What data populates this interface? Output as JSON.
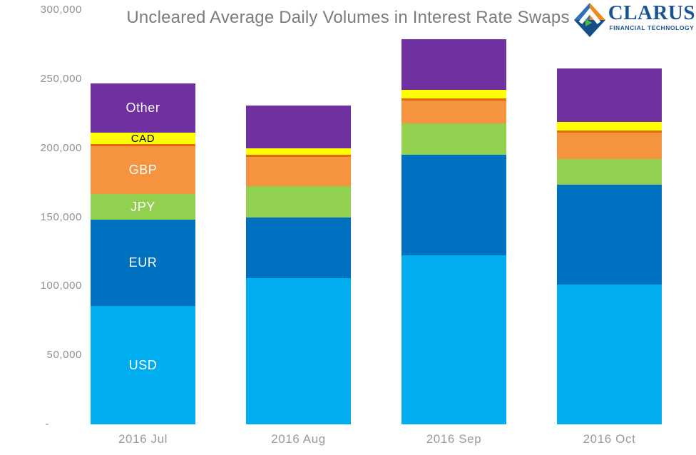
{
  "logo": {
    "brand": "CLARUS",
    "tagline": "FINANCIAL TECHNOLOGY",
    "colors": {
      "blue": "#1b5393",
      "light_blue": "#2e73b8",
      "dark_blue": "#174e88",
      "orange": "#ef8a1d",
      "green": "#4fb548"
    }
  },
  "chart_data": {
    "type": "bar",
    "stacked": true,
    "title": "Uncleared Average Daily Volumes in Interest Rate Swaps",
    "categories": [
      "2016 Jul",
      "2016 Aug",
      "2016 Sep",
      "2016 Oct"
    ],
    "series": [
      {
        "name": "USD",
        "color": "#00aeef",
        "label_color": "#ffffff",
        "values": [
          85500,
          106000,
          122500,
          101100
        ]
      },
      {
        "name": "EUR",
        "color": "#0070c0",
        "label_color": "#ffffff",
        "values": [
          62600,
          44000,
          72800,
          72300
        ]
      },
      {
        "name": "JPY",
        "color": "#92d050",
        "label_color": "#ffffff",
        "values": [
          18600,
          22300,
          22700,
          18900
        ]
      },
      {
        "name": "GBP",
        "color": "#f5933f",
        "label_color": "#ffffff",
        "values": [
          34800,
          21500,
          16700,
          19000
        ]
      },
      {
        "name": "",
        "color": "#e36c09",
        "label_color": "",
        "values": [
          1200,
          1200,
          1400,
          1700
        ]
      },
      {
        "name": "CAD",
        "color": "#ffff00",
        "label_color": "#000000",
        "values": [
          8600,
          4800,
          6000,
          6000
        ]
      },
      {
        "name": "Other",
        "color": "#7030a0",
        "label_color": "#ffffff",
        "values": [
          35600,
          31300,
          36700,
          38700
        ]
      }
    ],
    "totals": [
      246900,
      231100,
      278800,
      257700
    ],
    "y_axis": {
      "min": 0,
      "max": 300000,
      "step": 50000,
      "values": [
        0,
        50000,
        100000,
        150000,
        200000,
        250000,
        300000
      ],
      "tick_labels": [
        "-",
        "50,000",
        "100,000",
        "150,000",
        "200,000",
        "250,000",
        "300,000"
      ]
    },
    "legend": "inline-labels-on-first-bar",
    "grid": false
  }
}
